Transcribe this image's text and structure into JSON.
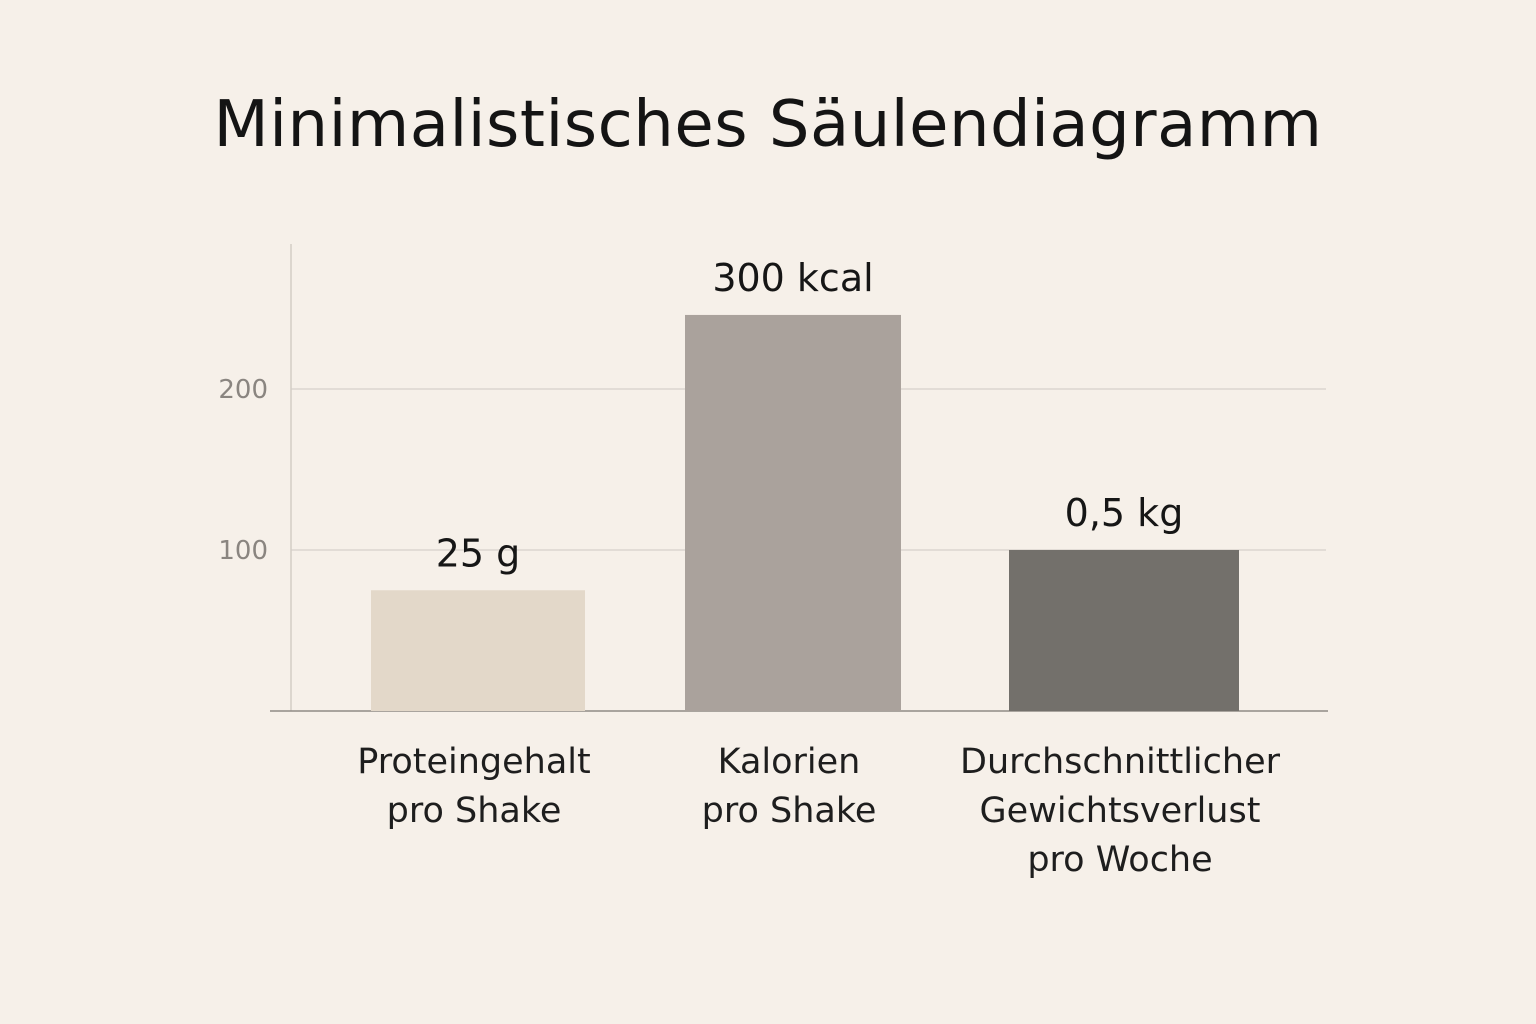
{
  "chart_data": {
    "type": "bar",
    "title": "Minimalistisches Säulendiagramm",
    "categories": [
      [
        "Proteingehalt",
        "pro Shake"
      ],
      [
        "Kalorien",
        "pro Shake"
      ],
      [
        "Durchschnittlicher",
        "Gewichtsverlust",
        "pro Woche"
      ]
    ],
    "values": [
      75,
      246,
      100
    ],
    "value_labels": [
      "25 g",
      "300 kcal",
      "0,5 kg"
    ],
    "colors": [
      "#e3d8c9",
      "#aaa29c",
      "#73706b"
    ],
    "yticks": [
      100,
      200
    ],
    "ylim": [
      0,
      295
    ],
    "grid": true,
    "xlabel": "",
    "ylabel": ""
  }
}
